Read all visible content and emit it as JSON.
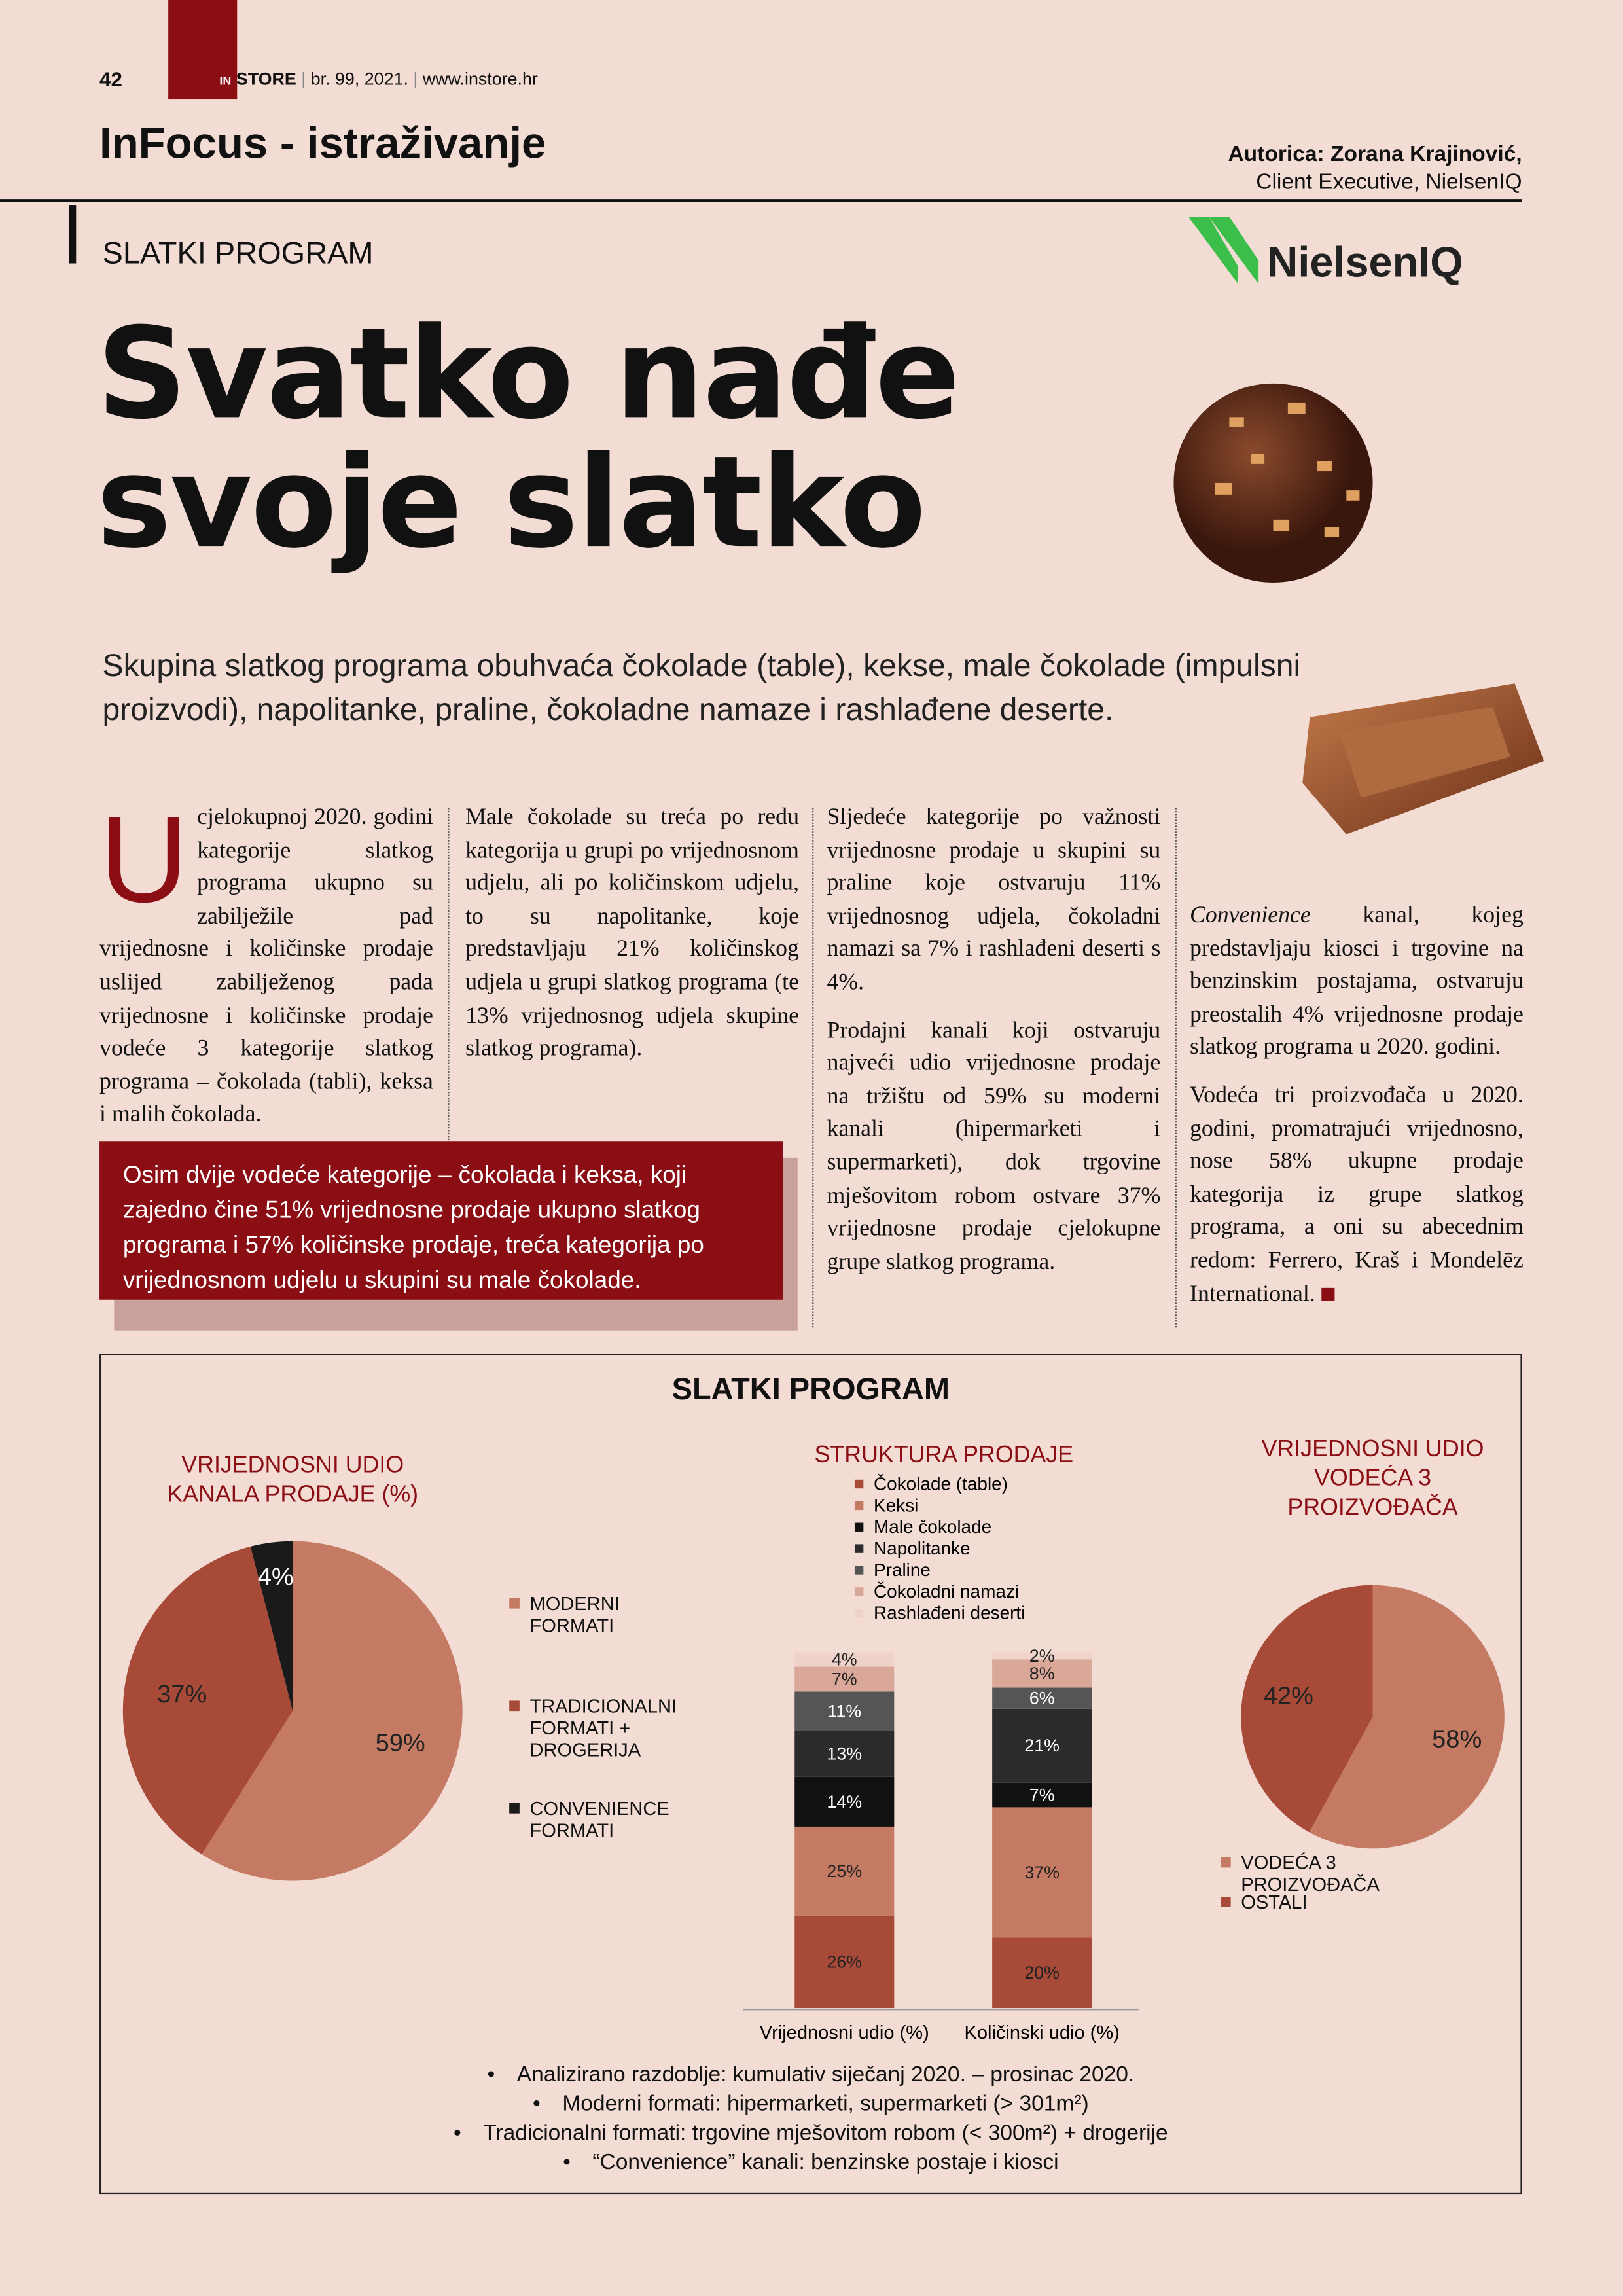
{
  "header": {
    "page_number": "42",
    "magazine_in": "IN",
    "magazine": "STORE",
    "issue": "br. 99, 2021.",
    "website": "www.instore.hr",
    "section": "InFocus - istraživanje",
    "author": "Autorica: Zorana Krajinović,",
    "author_role": "Client Executive, NielsenIQ",
    "logo": "NielsenIQ"
  },
  "article": {
    "kicker": "SLATKI PROGRAM",
    "title_lines": [
      "Svatko nađe",
      "svoje slatko"
    ],
    "lead": "Skupina slatkog programa obuhvaća čokolade (table), kekse, male čokolade (impulsni proizvodi), napolitanke, praline, čokoladne namaze i rashlađene deserte.",
    "columns": [
      [
        "U cjelokupnoj 2020. godini kategorije slatkog programa ukupno su zabilježile pad vrijednosne i količinske prodaje uslijed zabilježenog pada vrijednosne i količinske prodaje vodeće 3 kategorije slatkog programa – čokolada (tabli), keksa i malih čokolada."
      ],
      [
        "Male čokolade su treća po redu kategorija u grupi po vrijednosnom udjelu, ali po količinskom udjelu, to su napolitanke, koje predstavljaju 21% količinskog udjela u grupi slatkog programa (te 13% vrijednosnog udjela skupine slatkog programa)."
      ],
      [
        "Sljedeće kategorije po važnosti vrijednosne prodaje u skupini su praline koje ostvaruju 11% vrijednosnog udjela, čokoladni namazi sa 7% i rashlađeni deserti s 4%.",
        "Prodajni kanali koji ostvaruju najveći udio vrijednosne prodaje na tržištu od 59% su moderni kanali (hipermarketi i supermarketi), dok trgovine mješovitom robom ostvare 37% vrijednosne prodaje cjelokupne grupe slatkog programa."
      ],
      [
        {
          "em": "Convenience",
          "text": " kanal, kojeg predstavljaju kiosci i trgovine na benzinskim postajama, ostvaruju preostalih 4% vrijednosne prodaje slatkog programa u 2020. godini."
        },
        "Vodeća tri proizvođača u 2020. godini, promatrajući vrijednosno, nose 58% ukupne prodaje kategorija iz grupe slatkog programa, a oni su abecednim redom: Ferrero, Kraš i Mondelēz International."
      ]
    ],
    "callout": "Osim dvije vodeće kategorije – čokolada i keksa, koji zajedno čine 51% vrijednosne prodaje ukupno slatkog programa i 57% količinske prodaje, treća kategorija po vrijednosnom udjelu u skupini su male čokolade."
  },
  "infographic": {
    "title": "SLATKI PROGRAM",
    "notes": [
      "Analizirano razdoblje: kumulativ siječanj 2020. – prosinac 2020.",
      "Moderni formati: hipermarketi, supermarketi (> 301m²)",
      "Tradicionalni formati: trgovine mješovitom robom (< 300m²) + drogerije",
      "“Convenience” kanali: benzinske postaje i kiosci"
    ]
  },
  "chart_data": [
    {
      "type": "pie",
      "title": "VRIJEDNOSNI UDIO KANALA PRODAJE (%)",
      "categories": [
        "MODERNI FORMATI",
        "TRADICIONALNI FORMATI + DROGERIJA",
        "CONVENIENCE FORMATI"
      ],
      "values": [
        59,
        37,
        4
      ],
      "value_labels": [
        "59%",
        "37%",
        "4%"
      ],
      "colors": [
        "#c47a63",
        "#a84a38",
        "#1a1a1a"
      ]
    },
    {
      "type": "stacked-bar",
      "title": "STRUKTURA PRODAJE",
      "categories": [
        "Vrijednosni udio (%)",
        "Količinski udio (%)"
      ],
      "series": [
        {
          "name": "Čokolade (table)",
          "color": "#a84a38",
          "values": [
            26,
            20
          ],
          "value_labels": [
            "26%",
            "20%"
          ]
        },
        {
          "name": "Keksi",
          "color": "#c47a63",
          "values": [
            25,
            37
          ],
          "value_labels": [
            "25%",
            "37%"
          ]
        },
        {
          "name": "Male čokolade",
          "color": "#111111",
          "values": [
            14,
            7
          ],
          "value_labels": [
            "14%",
            "7%"
          ]
        },
        {
          "name": "Napolitanke",
          "color": "#2b2b2b",
          "values": [
            13,
            21
          ],
          "value_labels": [
            "13%",
            "21%"
          ]
        },
        {
          "name": "Praline",
          "color": "#555555",
          "values": [
            11,
            6
          ],
          "value_labels": [
            "11%",
            "6%"
          ]
        },
        {
          "name": "Čokoladni namazi",
          "color": "#d9a898",
          "values": [
            7,
            8
          ],
          "value_labels": [
            "7%",
            "8%"
          ]
        },
        {
          "name": "Rashlađeni deserti",
          "color": "#efd3cb",
          "values": [
            4,
            2
          ],
          "value_labels": [
            "4%",
            "2%"
          ]
        }
      ]
    },
    {
      "type": "pie",
      "title": "VRIJEDNOSNI UDIO VODEĆA 3 PROIZVOĐAČA",
      "categories": [
        "VODEĆA 3 PROIZVOĐAČA",
        "OSTALI"
      ],
      "values": [
        58,
        42
      ],
      "value_labels": [
        "58%",
        "42%"
      ],
      "colors": [
        "#c47a63",
        "#a84a38"
      ]
    }
  ]
}
